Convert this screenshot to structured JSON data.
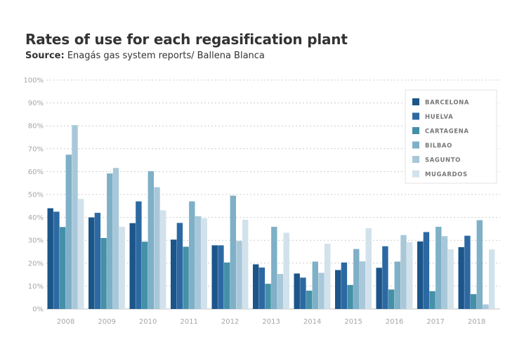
{
  "header": {
    "title": "Rates of use for each regasification plant",
    "source_label": "Source:",
    "source_text": " Enagás gas system reports/ Ballena Blanca"
  },
  "chart_data": {
    "type": "bar",
    "title": "Rates of use for each regasification plant",
    "subtitle": "Source: Enagás gas system reports/ Ballena Blanca",
    "categories": [
      "2008",
      "2009",
      "2010",
      "2011",
      "2012",
      "2013",
      "2014",
      "2015",
      "2016",
      "2017",
      "2018"
    ],
    "ylim": [
      0,
      100
    ],
    "yticks": [
      "0%",
      "10%",
      "20%",
      "30%",
      "40%",
      "50%",
      "60%",
      "70%",
      "80%",
      "90%",
      "100%"
    ],
    "grid": true,
    "legend_position": "top-right",
    "series": [
      {
        "name": "BARCELONA",
        "color": "#1b5589",
        "values": [
          44,
          40,
          37.5,
          30.3,
          27.8,
          19.5,
          15.5,
          17,
          18,
          29.5,
          27
        ]
      },
      {
        "name": "HUELVA",
        "color": "#2c69a3",
        "values": [
          42.5,
          42,
          47,
          37.6,
          27.8,
          18.1,
          13.7,
          20.3,
          27.4,
          33.6,
          32
        ]
      },
      {
        "name": "CARTAGENA",
        "color": "#4590a9",
        "values": [
          35.8,
          31,
          29.4,
          27.2,
          20.3,
          11,
          8,
          10.5,
          8.5,
          7.8,
          6.5
        ]
      },
      {
        "name": "BILBAO",
        "color": "#7eb0c7",
        "values": [
          67.4,
          59.2,
          60.2,
          47,
          49.5,
          35.9,
          20.7,
          26.2,
          20.7,
          35.9,
          38.8
        ]
      },
      {
        "name": "SAGUNTO",
        "color": "#a8c8d9",
        "values": [
          80.3,
          61.6,
          53.2,
          40.5,
          29.7,
          15.3,
          15.8,
          20.8,
          32.3,
          31.8,
          2
        ]
      },
      {
        "name": "MUGARDOS",
        "color": "#d2e2ec",
        "values": [
          48.1,
          35.9,
          43.1,
          39.6,
          39,
          33.3,
          28.5,
          35.3,
          29.2,
          26.1,
          26
        ]
      }
    ]
  }
}
